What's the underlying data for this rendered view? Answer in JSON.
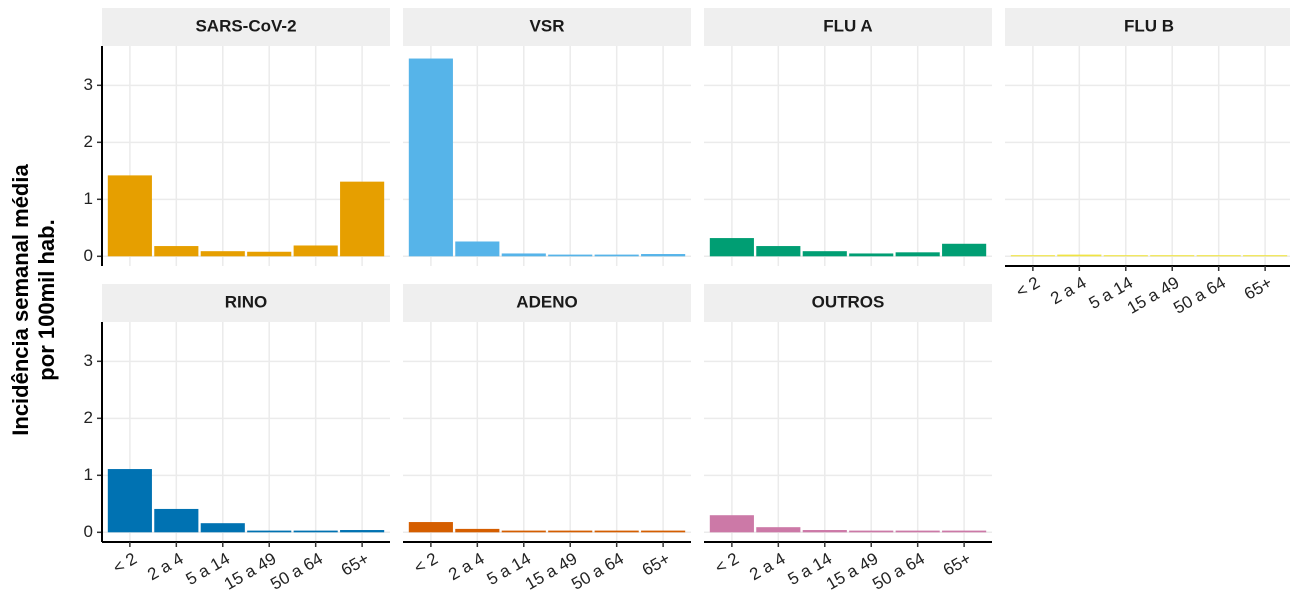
{
  "y_label": [
    "Incidência  semanal média",
    "por 100mil hab."
  ],
  "chart_data": [
    {
      "type": "bar",
      "title": "SARS-CoV-2",
      "categories": [
        "< 2",
        "2 a 4",
        "5 a 14",
        "15 a 49",
        "50 a 64",
        "65+"
      ],
      "values": [
        1.42,
        0.18,
        0.09,
        0.08,
        0.19,
        1.31
      ],
      "color": "#E69F00",
      "ylim": [
        -0.17,
        3.69
      ],
      "yticks": [
        0,
        1,
        2,
        3
      ],
      "grid": true
    },
    {
      "type": "bar",
      "title": "VSR",
      "categories": [
        "< 2",
        "2 a 4",
        "5 a 14",
        "15 a 49",
        "50 a 64",
        "65+"
      ],
      "values": [
        3.47,
        0.26,
        0.05,
        0.03,
        0.03,
        0.04
      ],
      "color": "#56B4E9",
      "ylim": [
        -0.17,
        3.69
      ],
      "yticks": [
        0,
        1,
        2,
        3
      ],
      "grid": true
    },
    {
      "type": "bar",
      "title": "FLU A",
      "categories": [
        "< 2",
        "2 a 4",
        "5 a 14",
        "15 a 49",
        "50 a 64",
        "65+"
      ],
      "values": [
        0.32,
        0.18,
        0.09,
        0.05,
        0.07,
        0.22
      ],
      "color": "#009E73",
      "ylim": [
        -0.17,
        3.69
      ],
      "yticks": [
        0,
        1,
        2,
        3
      ],
      "grid": true
    },
    {
      "type": "bar",
      "title": "FLU B",
      "categories": [
        "< 2",
        "2 a 4",
        "5 a 14",
        "15 a 49",
        "50 a 64",
        "65+"
      ],
      "values": [
        0.02,
        0.03,
        0.02,
        0.02,
        0.02,
        0.02
      ],
      "color": "#F0E442",
      "ylim": [
        -0.17,
        3.69
      ],
      "yticks": [
        0,
        1,
        2,
        3
      ],
      "grid": true
    },
    {
      "type": "bar",
      "title": "RINO",
      "categories": [
        "< 2",
        "2 a 4",
        "5 a 14",
        "15 a 49",
        "50 a 64",
        "65+"
      ],
      "values": [
        1.11,
        0.41,
        0.16,
        0.03,
        0.03,
        0.04
      ],
      "color": "#0072B2",
      "ylim": [
        -0.17,
        3.69
      ],
      "yticks": [
        0,
        1,
        2,
        3
      ],
      "grid": true
    },
    {
      "type": "bar",
      "title": "ADENO",
      "categories": [
        "< 2",
        "2 a 4",
        "5 a 14",
        "15 a 49",
        "50 a 64",
        "65+"
      ],
      "values": [
        0.18,
        0.06,
        0.03,
        0.03,
        0.03,
        0.03
      ],
      "color": "#D55E00",
      "ylim": [
        -0.17,
        3.69
      ],
      "yticks": [
        0,
        1,
        2,
        3
      ],
      "grid": true
    },
    {
      "type": "bar",
      "title": "OUTROS",
      "categories": [
        "< 2",
        "2 a 4",
        "5 a 14",
        "15 a 49",
        "50 a 64",
        "65+"
      ],
      "values": [
        0.3,
        0.09,
        0.04,
        0.03,
        0.03,
        0.03
      ],
      "color": "#CC79A7",
      "ylim": [
        -0.17,
        3.69
      ],
      "yticks": [
        0,
        1,
        2,
        3
      ],
      "grid": true
    }
  ]
}
